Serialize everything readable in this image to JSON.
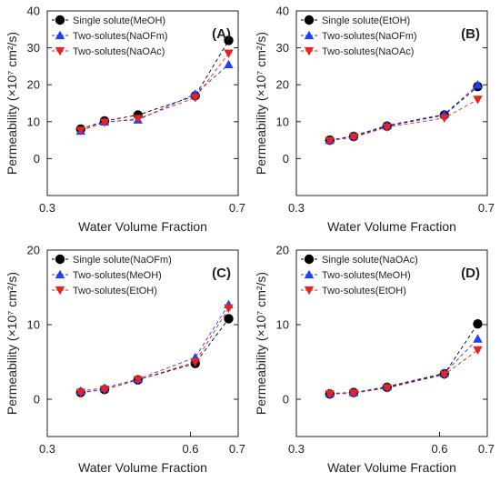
{
  "chart_data": [
    {
      "type": "line",
      "panel_label": "(A)",
      "xlabel": "Water Volume Fraction",
      "ylabel": "Permeability (×10⁷ cm²/s)",
      "xlim": [
        0.3,
        0.7
      ],
      "ylim": [
        -10,
        40
      ],
      "xticks": [
        "0.3",
        "0.7"
      ],
      "yticks": [
        "0",
        "10",
        "20",
        "30",
        "40"
      ],
      "x": [
        0.37,
        0.42,
        0.49,
        0.61,
        0.68
      ],
      "series": [
        {
          "name": "Single solute(MeOH)",
          "color": "#000000",
          "marker": "circle",
          "values": [
            8.0,
            10.2,
            11.8,
            17.0,
            32.0
          ]
        },
        {
          "name": "Two-solutes(NaOFm)",
          "color": "#1f3fff",
          "marker": "triangle-up",
          "values": [
            7.5,
            10.0,
            10.5,
            17.5,
            25.5
          ]
        },
        {
          "name": "Two-solutes(NaOAc)",
          "color": "#e8231e",
          "marker": "triangle-down",
          "values": [
            7.6,
            9.8,
            10.8,
            16.5,
            28.5
          ]
        }
      ]
    },
    {
      "type": "line",
      "panel_label": "(B)",
      "xlabel": "Water Volume Fraction",
      "ylabel": "Permeability (×10⁷ cm²/s)",
      "xlim": [
        0.3,
        0.7
      ],
      "ylim": [
        -10,
        40
      ],
      "xticks": [
        "0.3",
        "0.7"
      ],
      "yticks": [
        "0",
        "10",
        "20",
        "30",
        "40"
      ],
      "x": [
        0.37,
        0.42,
        0.49,
        0.61,
        0.68
      ],
      "series": [
        {
          "name": "Single solute(EtOH)",
          "color": "#000000",
          "marker": "circle",
          "values": [
            5.0,
            6.0,
            8.8,
            11.8,
            19.5
          ]
        },
        {
          "name": "Two-solutes(NaOFm)",
          "color": "#1f3fff",
          "marker": "triangle-up",
          "values": [
            5.0,
            6.2,
            9.0,
            12.0,
            20.0
          ]
        },
        {
          "name": "Two-solutes(NaOAc)",
          "color": "#e8231e",
          "marker": "triangle-down",
          "values": [
            4.8,
            5.8,
            8.5,
            11.0,
            16.0
          ]
        }
      ]
    },
    {
      "type": "line",
      "panel_label": "(C)",
      "xlabel": "Water Volume Fraction",
      "ylabel": "Permeability (×10⁷ cm²/s)",
      "xlim": [
        0.3,
        0.7
      ],
      "ylim": [
        -5,
        20
      ],
      "xticks": [
        "0.3",
        "0.6",
        "0.7"
      ],
      "yticks": [
        "0",
        "10",
        "20"
      ],
      "x": [
        0.37,
        0.42,
        0.49,
        0.61,
        0.68
      ],
      "series": [
        {
          "name": "Single solute(NaOFm)",
          "color": "#000000",
          "marker": "circle",
          "values": [
            0.9,
            1.3,
            2.6,
            4.8,
            10.8
          ]
        },
        {
          "name": "Two-solutes(MeOH)",
          "color": "#1f3fff",
          "marker": "triangle-up",
          "values": [
            1.1,
            1.5,
            2.7,
            5.6,
            12.7
          ]
        },
        {
          "name": "Two-solutes(EtOH)",
          "color": "#e8231e",
          "marker": "triangle-down",
          "values": [
            0.9,
            1.3,
            2.6,
            5.0,
            12.2
          ]
        }
      ]
    },
    {
      "type": "line",
      "panel_label": "(D)",
      "xlabel": "Water Volume Fraction",
      "ylabel": "Permeability (×10⁷ cm²/s)",
      "xlim": [
        0.3,
        0.7
      ],
      "ylim": [
        -5,
        20
      ],
      "xticks": [
        "0.3",
        "0.6",
        "0.7"
      ],
      "yticks": [
        "0",
        "10",
        "20"
      ],
      "x": [
        0.37,
        0.42,
        0.49,
        0.61,
        0.68
      ],
      "series": [
        {
          "name": "Single solute(NaOAc)",
          "color": "#000000",
          "marker": "circle",
          "values": [
            0.7,
            0.9,
            1.6,
            3.4,
            10.1
          ]
        },
        {
          "name": "Two-solutes(MeOH)",
          "color": "#1f3fff",
          "marker": "triangle-up",
          "values": [
            0.8,
            0.9,
            1.7,
            3.5,
            8.1
          ]
        },
        {
          "name": "Two-solutes(EtOH)",
          "color": "#e8231e",
          "marker": "triangle-down",
          "values": [
            0.7,
            0.8,
            1.5,
            3.3,
            6.6
          ]
        }
      ]
    }
  ]
}
